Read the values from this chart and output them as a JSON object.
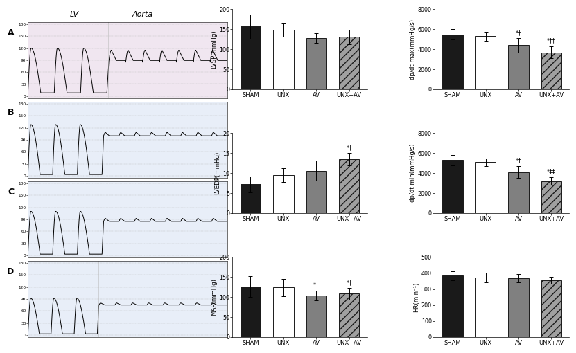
{
  "categories": [
    "SHAM",
    "UNX",
    "AV",
    "UNX+AV"
  ],
  "bar_colors": [
    "#1a1a1a",
    "#ffffff",
    "#808080",
    "#a0a0a0"
  ],
  "bar_edge_colors": [
    "#1a1a1a",
    "#1a1a1a",
    "#1a1a1a",
    "#1a1a1a"
  ],
  "LVSP_values": [
    157,
    149,
    128,
    131
  ],
  "LVSP_errors": [
    30,
    18,
    12,
    18
  ],
  "LVSP_ylabel": "LVSP(mmHg)",
  "LVSP_ylim": [
    0,
    200
  ],
  "LVSP_yticks": [
    0,
    50,
    100,
    150,
    200
  ],
  "LVSP_annotations": [
    "",
    "",
    "",
    ""
  ],
  "dpdt_max_values": [
    5500,
    5300,
    4400,
    3700
  ],
  "dpdt_max_errors": [
    500,
    450,
    700,
    600
  ],
  "dpdt_max_ylabel": "dp/dt max(mmHg/s)",
  "dpdt_max_ylim": [
    0,
    8000
  ],
  "dpdt_max_yticks": [
    0,
    2000,
    4000,
    6000,
    8000
  ],
  "dpdt_max_annotations": [
    "",
    "",
    "*†",
    "*‡‡"
  ],
  "LVEDP_values": [
    7.2,
    9.5,
    10.6,
    13.5
  ],
  "LVEDP_errors": [
    2.0,
    1.8,
    2.5,
    1.5
  ],
  "LVEDP_ylabel": "LVEDP(mmHg)",
  "LVEDP_ylim": [
    0,
    20
  ],
  "LVEDP_yticks": [
    0,
    5,
    10,
    15,
    20
  ],
  "LVEDP_annotations": [
    "",
    "",
    "",
    "*†"
  ],
  "dpdt_min_values": [
    5300,
    5100,
    4100,
    3200
  ],
  "dpdt_min_errors": [
    500,
    400,
    600,
    400
  ],
  "dpdt_min_ylabel": "dp/dt min(mmHg/s)",
  "dpdt_min_ylim": [
    0,
    8000
  ],
  "dpdt_min_yticks": [
    0,
    2000,
    4000,
    6000,
    8000
  ],
  "dpdt_min_annotations": [
    "",
    "",
    "*†",
    "*‡‡"
  ],
  "MAP_values": [
    127,
    124,
    104,
    108
  ],
  "MAP_errors": [
    26,
    22,
    12,
    14
  ],
  "MAP_ylabel": "MAP(mmHg)",
  "MAP_ylim": [
    0,
    200
  ],
  "MAP_yticks": [
    0,
    50,
    100,
    150,
    200
  ],
  "MAP_annotations": [
    "",
    "",
    "*†",
    "*†"
  ],
  "HR_values": [
    383,
    370,
    367,
    356
  ],
  "HR_errors": [
    28,
    30,
    25,
    22
  ],
  "HR_ylabel": "HR(min⁻¹)",
  "HR_ylim": [
    0,
    500
  ],
  "HR_yticks": [
    0,
    100,
    200,
    300,
    400,
    500
  ],
  "HR_annotations": [
    "",
    "",
    "",
    ""
  ],
  "trace_bg_A": "#f0e6f0",
  "trace_bg_BCD": "#e8eef8",
  "ytick_vals": [
    0,
    30,
    60,
    90,
    120,
    150,
    180
  ],
  "LV_label": "LV",
  "Aorta_label": "Aorta"
}
